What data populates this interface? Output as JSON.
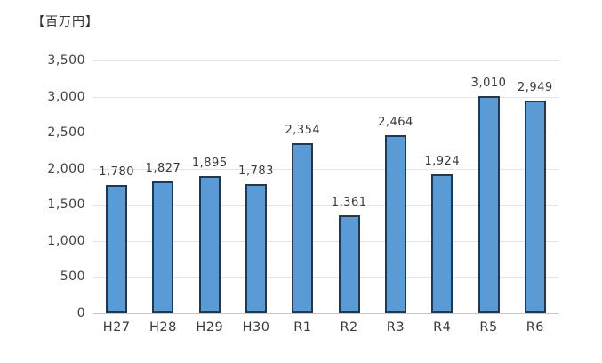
{
  "chart_data": {
    "type": "bar",
    "unit_label": "【百万円】",
    "categories": [
      "H27",
      "H28",
      "H29",
      "H30",
      "R1",
      "R2",
      "R3",
      "R4",
      "R5",
      "R6"
    ],
    "values": [
      1780,
      1827,
      1895,
      1783,
      2354,
      1361,
      2464,
      1924,
      3010,
      2949
    ],
    "data_labels": [
      "1,780",
      "1,827",
      "1,895",
      "1,783",
      "2,354",
      "1,361",
      "2,464",
      "1,924",
      "3,010",
      "2,949"
    ],
    "title": "",
    "xlabel": "",
    "ylabel": "",
    "ylim": [
      0,
      3500
    ],
    "ytick_step": 500,
    "ytick_labels": [
      "3,500",
      "3,000",
      "2,500",
      "2,000",
      "1,500",
      "1,000",
      "500",
      "0"
    ],
    "grid": "horizontal",
    "legend": "none",
    "colors": {
      "bar_fill": "#5b9bd5",
      "bar_border": "#23374d",
      "gridline": "#e4e4e4",
      "axis_line": "#c6c6c6",
      "text": "#3a3a3a"
    }
  }
}
